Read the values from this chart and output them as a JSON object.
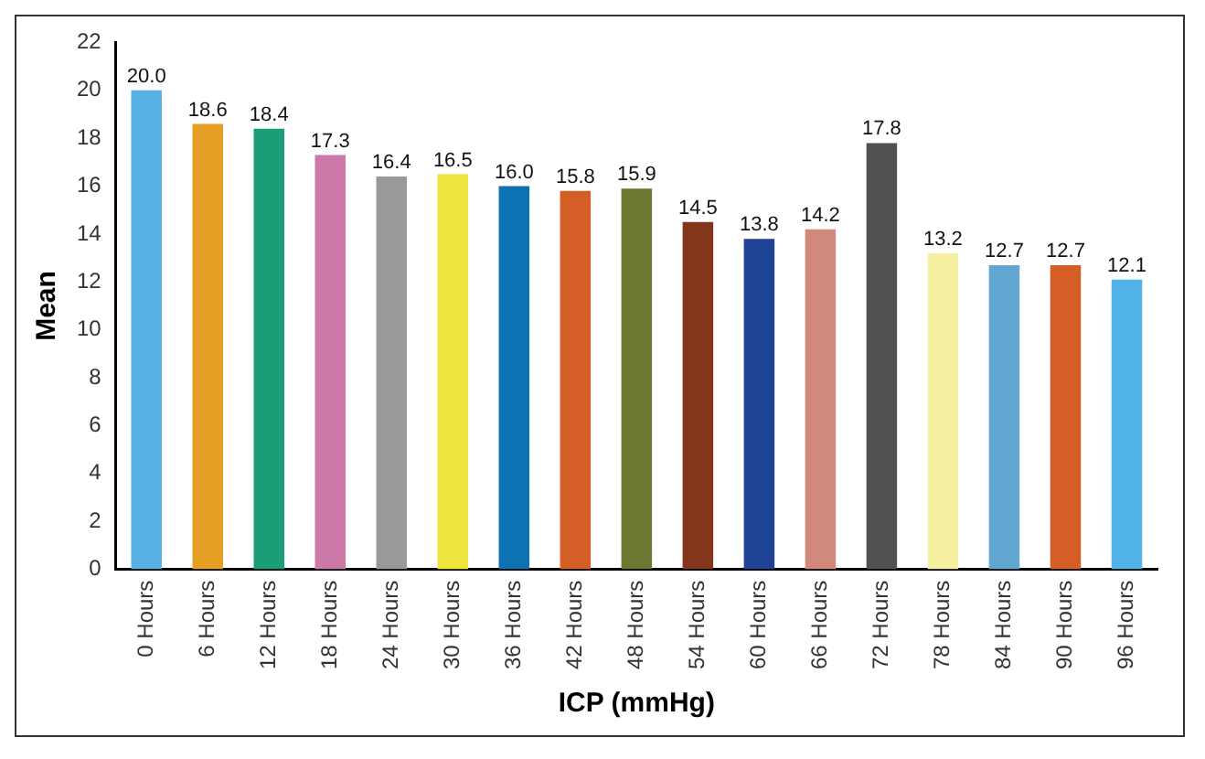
{
  "chart_data": {
    "type": "bar",
    "xlabel": "ICP (mmHg)",
    "ylabel": "Mean",
    "categories": [
      "0 Hours",
      "6 Hours",
      "12 Hours",
      "18 Hours",
      "24 Hours",
      "30 Hours",
      "36 Hours",
      "42 Hours",
      "48 Hours",
      "54 Hours",
      "60 Hours",
      "66 Hours",
      "72 Hours",
      "78 Hours",
      "84 Hours",
      "90 Hours",
      "96 Hours"
    ],
    "values": [
      20.0,
      18.6,
      18.4,
      17.3,
      16.4,
      16.5,
      16.0,
      15.8,
      15.9,
      14.5,
      13.8,
      14.2,
      17.8,
      13.2,
      12.7,
      12.7,
      12.1
    ],
    "value_labels": [
      "20.0",
      "18.6",
      "18.4",
      "17.3",
      "16.4",
      "16.5",
      "16.0",
      "15.8",
      "15.9",
      "14.5",
      "13.8",
      "14.2",
      "17.8",
      "13.2",
      "12.7",
      "12.7",
      "12.1"
    ],
    "colors": [
      "#58b1e4",
      "#e69f24",
      "#1b9e77",
      "#cc79a7",
      "#999999",
      "#ede53b",
      "#0c72b2",
      "#d55e27",
      "#6e7732",
      "#83361c",
      "#1f4397",
      "#d0897a",
      "#515151",
      "#f6f1a0",
      "#62a7d2",
      "#d55e27",
      "#52b3e6"
    ],
    "ylim": [
      0,
      22
    ],
    "yticks": [
      0,
      2,
      4,
      6,
      8,
      10,
      12,
      14,
      16,
      18,
      20,
      22
    ],
    "grid": false,
    "legend": false
  }
}
